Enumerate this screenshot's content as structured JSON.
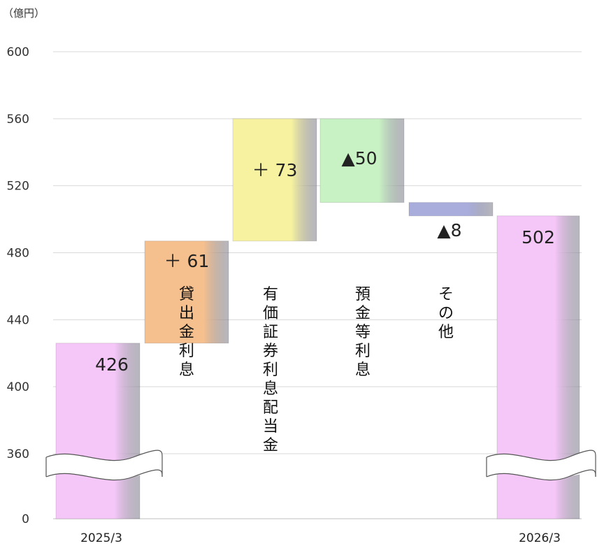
{
  "chart_data": {
    "type": "bar",
    "subtype": "waterfall",
    "unit_label": "（億円）",
    "y_ticks": [
      "0",
      "360",
      "400",
      "440",
      "480",
      "520",
      "560",
      "600"
    ],
    "ylim": [
      360,
      600
    ],
    "axis_break": true,
    "grid": true,
    "bars": [
      {
        "id": "start",
        "kind": "total",
        "category": "2025/3",
        "value": 426,
        "label": "426",
        "color": "#f5c6f8"
      },
      {
        "id": "loan",
        "kind": "delta",
        "category": "貸出金利息",
        "value": 61,
        "from": 426,
        "to": 487,
        "label": "＋ 61",
        "color": "#f6c08e"
      },
      {
        "id": "securities",
        "kind": "delta",
        "category": "有価証券利息配当金",
        "value": 73,
        "from": 487,
        "to": 560,
        "label": "＋ 73",
        "color": "#f6f2a0"
      },
      {
        "id": "deposit",
        "kind": "delta",
        "category": "預金等利息",
        "value": -50,
        "from": 560,
        "to": 510,
        "label": "▲50",
        "color": "#c9f2c4"
      },
      {
        "id": "other",
        "kind": "delta",
        "category": "その他",
        "value": -8,
        "from": 510,
        "to": 502,
        "label": "▲8",
        "color": "#a9addc"
      },
      {
        "id": "end",
        "kind": "total",
        "category": "2026/3",
        "value": 502,
        "label": "502",
        "color": "#f5c6f8"
      }
    ]
  }
}
